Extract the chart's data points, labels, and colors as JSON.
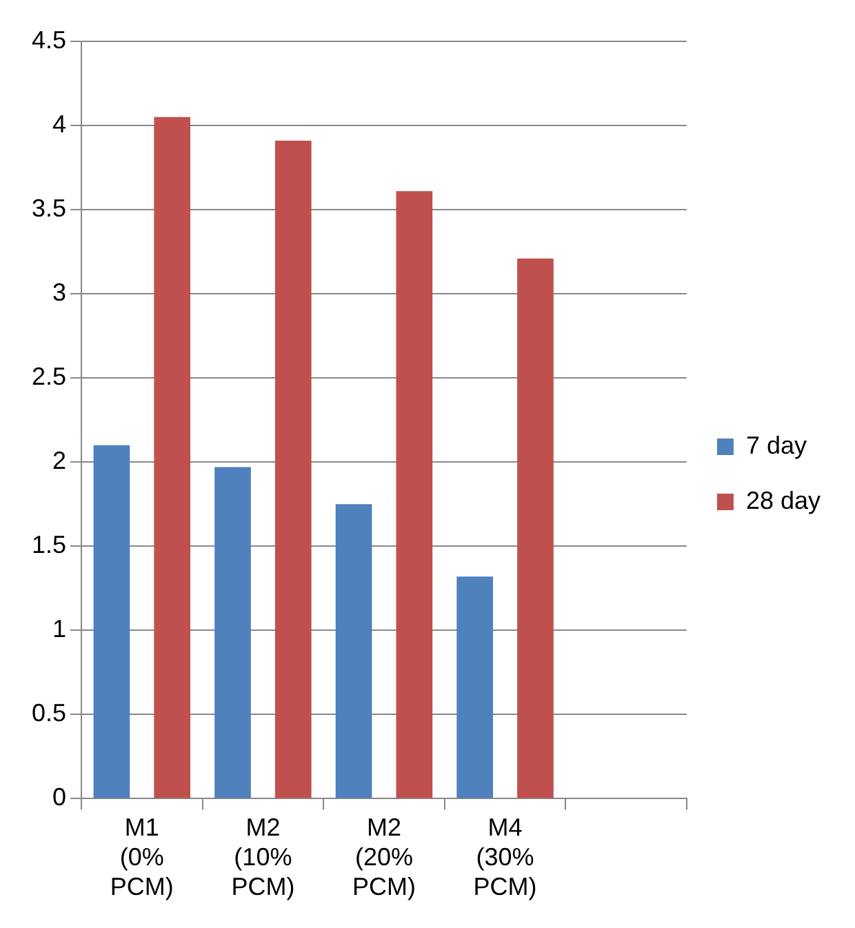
{
  "chart_data": {
    "type": "bar",
    "categories": [
      "M1 (0% PCM)",
      "M2 (10% PCM)",
      "M2 (20% PCM)",
      "M4 (30% PCM)",
      null
    ],
    "series": [
      {
        "name": "7 day",
        "color": "#4f81bd",
        "values": [
          2.1,
          1.97,
          1.75,
          1.32,
          null
        ]
      },
      {
        "name": "28 day",
        "color": "#c0504d",
        "values": [
          4.05,
          3.91,
          3.61,
          3.21,
          null
        ]
      }
    ],
    "ylim": [
      0,
      4.5
    ],
    "yticks": [
      0,
      0.5,
      1,
      1.5,
      2,
      2.5,
      3,
      3.5,
      4,
      4.5
    ],
    "grid": "y",
    "legend": "right"
  }
}
